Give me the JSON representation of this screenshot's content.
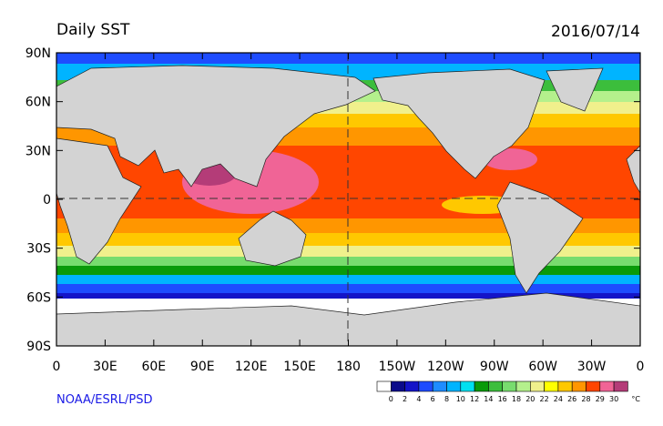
{
  "title": "Daily SST",
  "date": "2016/07/14",
  "map": {
    "xlim": [
      0,
      360
    ],
    "ylim": [
      -90,
      90
    ],
    "lat_ticks": [
      {
        "value": 90,
        "label": "90N"
      },
      {
        "value": 60,
        "label": "60N"
      },
      {
        "value": 30,
        "label": "30N"
      },
      0,
      {
        "value": -30,
        "label": "30S"
      },
      {
        "value": -60,
        "label": "60S"
      },
      {
        "value": -90,
        "label": "90S"
      }
    ],
    "lon_ticks": [
      0,
      {
        "value": 30,
        "label": "30E"
      },
      {
        "value": 60,
        "label": "60E"
      },
      {
        "value": 90,
        "label": "90E"
      },
      {
        "value": 120,
        "label": "120E"
      },
      {
        "value": 150,
        "label": "150E"
      },
      180,
      {
        "value": 210,
        "label": "150W"
      },
      {
        "value": 240,
        "label": "120W"
      },
      {
        "value": 270,
        "label": "90W"
      },
      {
        "value": 300,
        "label": "60W"
      },
      {
        "value": 330,
        "label": "30W"
      },
      {
        "value": 360,
        "label": "0"
      }
    ]
  },
  "colorbar": {
    "levels": [
      0,
      2,
      4,
      6,
      8,
      10,
      12,
      14,
      16,
      18,
      20,
      22,
      24,
      26,
      28,
      29,
      30
    ],
    "colors": [
      "#ffffff",
      "#0b0b8a",
      "#1414c8",
      "#1e4cff",
      "#1e8cff",
      "#00b4ff",
      "#00e0f0",
      "#0a9a0a",
      "#3cbe3c",
      "#78dc6e",
      "#b4f08c",
      "#f0f08c",
      "#ffff00",
      "#ffc800",
      "#ff9600",
      "#ff4600",
      "#f06496",
      "#b43c78"
    ],
    "unit": "°C"
  },
  "credit": "NOAA/ESRL/PSD"
}
